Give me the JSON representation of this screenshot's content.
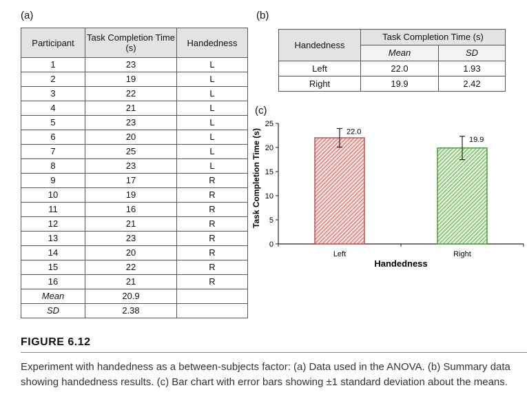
{
  "panels": {
    "a": "(a)",
    "b": "(b)",
    "c": "(c)"
  },
  "table_a": {
    "headers": [
      "Participant",
      "Task Completion Time (s)",
      "Handedness"
    ],
    "rows": [
      [
        "1",
        "23",
        "L"
      ],
      [
        "2",
        "19",
        "L"
      ],
      [
        "3",
        "22",
        "L"
      ],
      [
        "4",
        "21",
        "L"
      ],
      [
        "5",
        "23",
        "L"
      ],
      [
        "6",
        "20",
        "L"
      ],
      [
        "7",
        "25",
        "L"
      ],
      [
        "8",
        "23",
        "L"
      ],
      [
        "9",
        "17",
        "R"
      ],
      [
        "10",
        "19",
        "R"
      ],
      [
        "11",
        "16",
        "R"
      ],
      [
        "12",
        "21",
        "R"
      ],
      [
        "13",
        "23",
        "R"
      ],
      [
        "14",
        "20",
        "R"
      ],
      [
        "15",
        "22",
        "R"
      ],
      [
        "16",
        "21",
        "R"
      ]
    ],
    "summary": [
      [
        "Mean",
        "20.9",
        ""
      ],
      [
        "SD",
        "2.38",
        ""
      ]
    ]
  },
  "table_b": {
    "header_group": "Handedness",
    "header_span": "Task Completion Time (s)",
    "subheaders": [
      "Mean",
      "SD"
    ],
    "rows": [
      [
        "Left",
        "22.0",
        "1.93"
      ],
      [
        "Right",
        "19.9",
        "2.42"
      ]
    ]
  },
  "chart_data": {
    "type": "bar",
    "categories": [
      "Left",
      "Right"
    ],
    "values": [
      22.0,
      19.9
    ],
    "sd": [
      1.93,
      2.42
    ],
    "data_labels": [
      "22.0",
      "19.9"
    ],
    "xlabel": "Handedness",
    "ylabel": "Task Completion Time (s)",
    "ylim": [
      0,
      25
    ],
    "yticks": [
      0,
      5,
      10,
      15,
      20,
      25
    ],
    "grid": false,
    "colors": {
      "Left": "#c0504d",
      "Right": "#4e9a3e"
    }
  },
  "figure_label": "FIGURE 6.12",
  "caption": "Experiment with handedness as a between-subjects factor: (a) Data used in the ANOVA. (b) Summary data showing handedness results. (c) Bar chart with error bars showing ±1 standard deviation about the means."
}
